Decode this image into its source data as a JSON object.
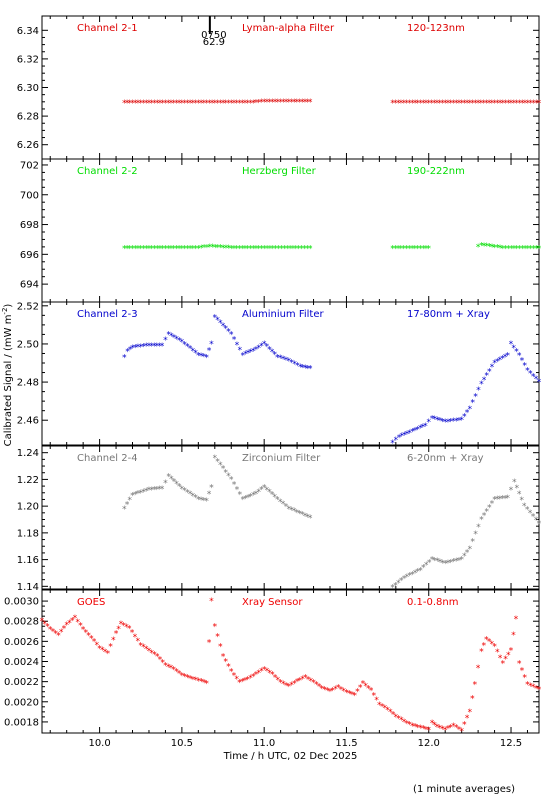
{
  "chart_data": {
    "type": "scatter",
    "xlabel": "Time / h UTC, 02 Dec 2025",
    "ylabel": "Calibrated Signal / (mW m",
    "ylabel_sup": "-2",
    "ylabel_close": ")",
    "footnote": "(1 minute averages)",
    "x_range": [
      9.65,
      12.67
    ],
    "x_ticks": [
      "10.0",
      "10.5",
      "11.0",
      "11.5",
      "12.0",
      "12.5"
    ],
    "x_tick_values": [
      10.0,
      10.5,
      11.0,
      11.5,
      12.0,
      12.5
    ],
    "marker": {
      "time": 10.67,
      "label_top": "0750",
      "label_bottom": "62.9"
    },
    "panels": [
      {
        "id": "ch2-1",
        "color": "#dd0000",
        "labels": [
          "Channel 2-1",
          "Lyman-alpha Filter",
          "120-123nm"
        ],
        "ylim": [
          6.25,
          6.35
        ],
        "y_ticks": [
          "6.26",
          "6.28",
          "6.30",
          "6.32",
          "6.34"
        ],
        "y_tick_values": [
          6.26,
          6.28,
          6.3,
          6.32,
          6.34
        ],
        "points": [
          [
            10.15,
            6.289
          ],
          [
            10.3,
            6.289
          ],
          [
            10.45,
            6.289
          ],
          [
            10.6,
            6.289
          ],
          [
            10.75,
            6.289
          ],
          [
            10.9,
            6.289
          ],
          [
            11.0,
            6.29
          ],
          [
            11.15,
            6.29
          ],
          [
            11.28,
            6.29
          ],
          [
            11.78,
            6.289
          ],
          [
            11.9,
            6.289
          ],
          [
            12.05,
            6.289
          ],
          [
            12.2,
            6.289
          ],
          [
            12.35,
            6.289
          ],
          [
            12.5,
            6.289
          ],
          [
            12.67,
            6.289
          ]
        ]
      },
      {
        "id": "ch2-2",
        "color": "#00dd00",
        "labels": [
          "Channel 2-2",
          "Herzberg Filter",
          "190-222nm"
        ],
        "ylim": [
          692.8,
          702.4
        ],
        "y_ticks": [
          "694",
          "696",
          "698",
          "700",
          "702"
        ],
        "y_tick_values": [
          694,
          696,
          698,
          700,
          702
        ],
        "points": [
          [
            10.15,
            696.4
          ],
          [
            10.4,
            696.4
          ],
          [
            10.6,
            696.4
          ],
          [
            10.67,
            696.5
          ],
          [
            10.8,
            696.4
          ],
          [
            11.0,
            696.4
          ],
          [
            11.28,
            696.4
          ],
          [
            11.78,
            696.4
          ],
          [
            12.0,
            696.4
          ],
          [
            12.3,
            696.5
          ],
          [
            12.32,
            696.6
          ],
          [
            12.45,
            696.4
          ],
          [
            12.67,
            696.4
          ]
        ]
      },
      {
        "id": "ch2-3",
        "color": "#0000cc",
        "labels": [
          "Channel 2-3",
          "Aluminium Filter",
          "17-80nm + Xray"
        ],
        "ylim": [
          2.447,
          2.522
        ],
        "y_ticks": [
          "2.46",
          "2.48",
          "2.50",
          "2.52"
        ],
        "y_tick_values": [
          2.46,
          2.48,
          2.5,
          2.52
        ],
        "points": [
          [
            10.15,
            2.493
          ],
          [
            10.17,
            2.496
          ],
          [
            10.2,
            2.498
          ],
          [
            10.3,
            2.499
          ],
          [
            10.38,
            2.499
          ],
          [
            10.42,
            2.505
          ],
          [
            10.5,
            2.501
          ],
          [
            10.6,
            2.494
          ],
          [
            10.65,
            2.493
          ],
          [
            10.68,
            2.5
          ],
          [
            10.7,
            2.514
          ],
          [
            10.8,
            2.505
          ],
          [
            10.87,
            2.494
          ],
          [
            10.95,
            2.497
          ],
          [
            11.0,
            2.5
          ],
          [
            11.08,
            2.493
          ],
          [
            11.15,
            2.491
          ],
          [
            11.22,
            2.488
          ],
          [
            11.28,
            2.487
          ],
          [
            11.78,
            2.448
          ],
          [
            11.82,
            2.451
          ],
          [
            11.9,
            2.454
          ],
          [
            11.98,
            2.457
          ],
          [
            12.02,
            2.461
          ],
          [
            12.1,
            2.459
          ],
          [
            12.2,
            2.46
          ],
          [
            12.25,
            2.466
          ],
          [
            12.32,
            2.479
          ],
          [
            12.4,
            2.49
          ],
          [
            12.48,
            2.494
          ],
          [
            12.5,
            2.5
          ],
          [
            12.55,
            2.494
          ],
          [
            12.6,
            2.486
          ],
          [
            12.67,
            2.48
          ]
        ]
      },
      {
        "id": "ch2-4",
        "color": "#777777",
        "labels": [
          "Channel 2-4",
          "Zirconium Filter",
          "6-20nm + Xray"
        ],
        "ylim": [
          1.138,
          1.245
        ],
        "y_ticks": [
          "1.14",
          "1.16",
          "1.18",
          "1.20",
          "1.22",
          "1.24"
        ],
        "y_tick_values": [
          1.14,
          1.16,
          1.18,
          1.2,
          1.22,
          1.24
        ],
        "points": [
          [
            10.15,
            1.198
          ],
          [
            10.2,
            1.208
          ],
          [
            10.3,
            1.212
          ],
          [
            10.38,
            1.213
          ],
          [
            10.42,
            1.222
          ],
          [
            10.5,
            1.213
          ],
          [
            10.6,
            1.205
          ],
          [
            10.65,
            1.204
          ],
          [
            10.68,
            1.214
          ],
          [
            10.7,
            1.236
          ],
          [
            10.8,
            1.22
          ],
          [
            10.87,
            1.205
          ],
          [
            10.95,
            1.209
          ],
          [
            11.0,
            1.214
          ],
          [
            11.08,
            1.205
          ],
          [
            11.15,
            1.198
          ],
          [
            11.28,
            1.191
          ],
          [
            11.78,
            1.139
          ],
          [
            11.85,
            1.146
          ],
          [
            11.95,
            1.152
          ],
          [
            12.02,
            1.16
          ],
          [
            12.1,
            1.157
          ],
          [
            12.2,
            1.16
          ],
          [
            12.25,
            1.168
          ],
          [
            12.32,
            1.19
          ],
          [
            12.4,
            1.205
          ],
          [
            12.48,
            1.206
          ],
          [
            12.52,
            1.218
          ],
          [
            12.58,
            1.2
          ],
          [
            12.67,
            1.187
          ]
        ]
      },
      {
        "id": "goes",
        "color": "#ee0000",
        "labels": [
          "GOES",
          "Xray Sensor",
          "0.1-0.8nm"
        ],
        "ylim": [
          0.00169,
          0.00311
        ],
        "y_ticks": [
          "0.0018",
          "0.0020",
          "0.0022",
          "0.0024",
          "0.0026",
          "0.0028",
          "0.0030"
        ],
        "y_tick_values": [
          0.0018,
          0.002,
          0.0022,
          0.0024,
          0.0026,
          0.0028,
          0.003
        ],
        "points": [
          [
            9.65,
            0.0028
          ],
          [
            9.7,
            0.00272
          ],
          [
            9.75,
            0.00266
          ],
          [
            9.8,
            0.00276
          ],
          [
            9.85,
            0.00283
          ],
          [
            9.9,
            0.00272
          ],
          [
            9.95,
            0.00263
          ],
          [
            10.0,
            0.00253
          ],
          [
            10.05,
            0.00248
          ],
          [
            10.1,
            0.00268
          ],
          [
            10.13,
            0.00277
          ],
          [
            10.18,
            0.00273
          ],
          [
            10.25,
            0.00256
          ],
          [
            10.35,
            0.00245
          ],
          [
            10.4,
            0.00236
          ],
          [
            10.45,
            0.00232
          ],
          [
            10.5,
            0.00226
          ],
          [
            10.55,
            0.00223
          ],
          [
            10.62,
            0.0022
          ],
          [
            10.65,
            0.00218
          ],
          [
            10.68,
            0.003
          ],
          [
            10.7,
            0.00275
          ],
          [
            10.75,
            0.00245
          ],
          [
            10.8,
            0.0023
          ],
          [
            10.85,
            0.00219
          ],
          [
            10.9,
            0.00222
          ],
          [
            10.95,
            0.00227
          ],
          [
            11.0,
            0.00232
          ],
          [
            11.05,
            0.00227
          ],
          [
            11.1,
            0.00219
          ],
          [
            11.15,
            0.00215
          ],
          [
            11.2,
            0.0022
          ],
          [
            11.25,
            0.00224
          ],
          [
            11.3,
            0.00219
          ],
          [
            11.35,
            0.00213
          ],
          [
            11.4,
            0.0021
          ],
          [
            11.45,
            0.00214
          ],
          [
            11.5,
            0.00209
          ],
          [
            11.55,
            0.00206
          ],
          [
            11.6,
            0.00218
          ],
          [
            11.65,
            0.00211
          ],
          [
            11.7,
            0.00197
          ],
          [
            11.75,
            0.00192
          ],
          [
            11.8,
            0.00185
          ],
          [
            11.85,
            0.0018
          ],
          [
            11.9,
            0.00176
          ],
          [
            12.0,
            0.00172
          ],
          [
            12.02,
            0.00179
          ],
          [
            12.05,
            0.00175
          ],
          [
            12.1,
            0.00172
          ],
          [
            12.15,
            0.00176
          ],
          [
            12.2,
            0.00171
          ],
          [
            12.25,
            0.0019
          ],
          [
            12.28,
            0.00217
          ],
          [
            12.32,
            0.0025
          ],
          [
            12.35,
            0.00262
          ],
          [
            12.4,
            0.00255
          ],
          [
            12.45,
            0.00238
          ],
          [
            12.5,
            0.00251
          ],
          [
            12.53,
            0.00282
          ],
          [
            12.55,
            0.00238
          ],
          [
            12.6,
            0.00217
          ],
          [
            12.67,
            0.00212
          ]
        ]
      }
    ]
  }
}
